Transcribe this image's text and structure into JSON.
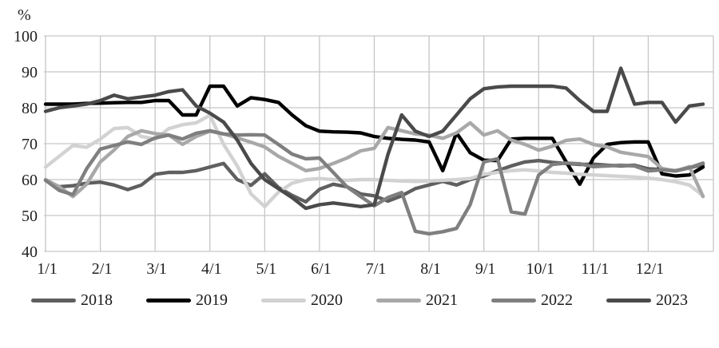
{
  "chart_data": {
    "type": "line",
    "title": "",
    "ylabel": "%",
    "xlabel": "",
    "ylim": [
      40,
      100
    ],
    "y_ticks": [
      100,
      90,
      80,
      70,
      60,
      50,
      40
    ],
    "x_tick_labels": [
      "1/1",
      "2/1",
      "3/1",
      "4/1",
      "5/1",
      "6/1",
      "7/1",
      "8/1",
      "9/1",
      "10/1",
      "11/1",
      "12/1"
    ],
    "points_per_month": 4,
    "grid": true,
    "grid_color": "#c6c6c6",
    "legend_position": "bottom",
    "series": [
      {
        "name": "2018",
        "color": "#5f5f5f",
        "values": [
          59.8,
          58,
          58.3,
          59,
          59.3,
          58.5,
          57.2,
          58.5,
          61.5,
          62,
          62,
          62.5,
          63.5,
          64.5,
          60,
          58.4,
          61.6,
          57.8,
          55.6,
          53.8,
          57.3,
          58.7,
          58,
          56,
          55.5,
          54,
          55.5,
          57.5,
          58.5,
          59.5,
          58.5,
          60,
          61,
          62.5,
          63.8,
          64.9,
          65.3,
          64.8,
          64.5,
          64.2,
          64.3,
          64,
          63.8,
          64,
          63,
          62.8,
          62.5,
          63.3,
          64.2
        ]
      },
      {
        "name": "2019",
        "color": "#000000",
        "values": [
          81,
          81,
          81,
          81.2,
          81.3,
          81.4,
          81.5,
          81.5,
          82,
          82,
          78,
          78,
          86,
          86,
          80.5,
          82.8,
          82.3,
          81.5,
          78,
          75,
          73.5,
          73.3,
          73.2,
          73,
          72,
          71.5,
          71.2,
          71,
          70.5,
          62.5,
          73,
          67.5,
          65.4,
          65.3,
          71.3,
          71.5,
          71.5,
          71.5,
          65,
          58.7,
          66,
          69.8,
          70.3,
          70.5,
          70.5,
          61.6,
          61,
          61.3,
          63.5
        ]
      },
      {
        "name": "2020",
        "color": "#d2d2d2",
        "values": [
          63.5,
          66.5,
          69.5,
          69,
          71.3,
          74.2,
          74.5,
          72,
          71.3,
          74.2,
          75.3,
          75.8,
          77.9,
          69.8,
          63.8,
          56,
          52.5,
          56.5,
          59,
          60,
          60.3,
          60,
          59.8,
          60,
          60,
          59.8,
          59.6,
          59.5,
          59.6,
          59.8,
          60,
          60.3,
          61.5,
          62,
          62.5,
          62.7,
          62.4,
          62,
          61.8,
          61.5,
          61.3,
          61.1,
          60.9,
          60.7,
          60.4,
          60,
          59.4,
          58.5,
          55.5
        ]
      },
      {
        "name": "2021",
        "color": "#a8a8a8",
        "values": [
          60,
          58,
          55.3,
          58.7,
          64.9,
          68.2,
          72,
          73.6,
          72.8,
          72.4,
          69.8,
          72,
          73.5,
          72.7,
          71.6,
          70.4,
          69.1,
          66.5,
          64.5,
          62.5,
          63.1,
          64.5,
          66,
          68,
          68.7,
          74.5,
          73.6,
          72.7,
          72.4,
          71.5,
          73,
          75.8,
          72.4,
          73.6,
          71,
          69.8,
          68.2,
          69.3,
          70.9,
          71.3,
          69.8,
          69.1,
          67.6,
          67,
          66.4,
          63.1,
          62.4,
          63.6,
          55.3
        ]
      },
      {
        "name": "2022",
        "color": "#7f7f7f",
        "values": [
          59.8,
          57,
          55.8,
          63,
          68.5,
          69.5,
          70.5,
          69.8,
          71.6,
          72.4,
          71.3,
          72.9,
          73.6,
          72.7,
          72.4,
          72.5,
          72.4,
          69.8,
          67.1,
          65.8,
          66,
          62,
          58,
          55.3,
          52.7,
          55,
          56.4,
          45.6,
          44.9,
          45.5,
          46.4,
          53,
          64.9,
          65.8,
          51,
          50.4,
          61.3,
          64.2,
          64.6,
          64.4,
          63.6,
          63.8,
          64,
          63.8,
          62.4,
          62.7,
          62.4,
          63.3,
          64.6
        ]
      },
      {
        "name": "2023",
        "color": "#4a4a4a",
        "values": [
          79,
          80,
          80.5,
          81,
          82,
          83.5,
          82.5,
          83,
          83.5,
          84.5,
          85,
          80.5,
          78.5,
          76,
          71,
          64.5,
          60,
          57.5,
          55,
          52,
          53,
          53.5,
          53,
          52.5,
          53,
          67,
          78,
          73.5,
          72,
          73.5,
          78,
          82.5,
          85.3,
          85.8,
          86,
          86,
          86,
          86,
          85.5,
          82,
          79,
          79,
          91,
          81,
          81.5,
          81.5,
          76,
          80.5,
          81
        ]
      }
    ]
  },
  "legend": {
    "items": [
      "2018",
      "2019",
      "2020",
      "2021",
      "2022",
      "2023"
    ]
  }
}
